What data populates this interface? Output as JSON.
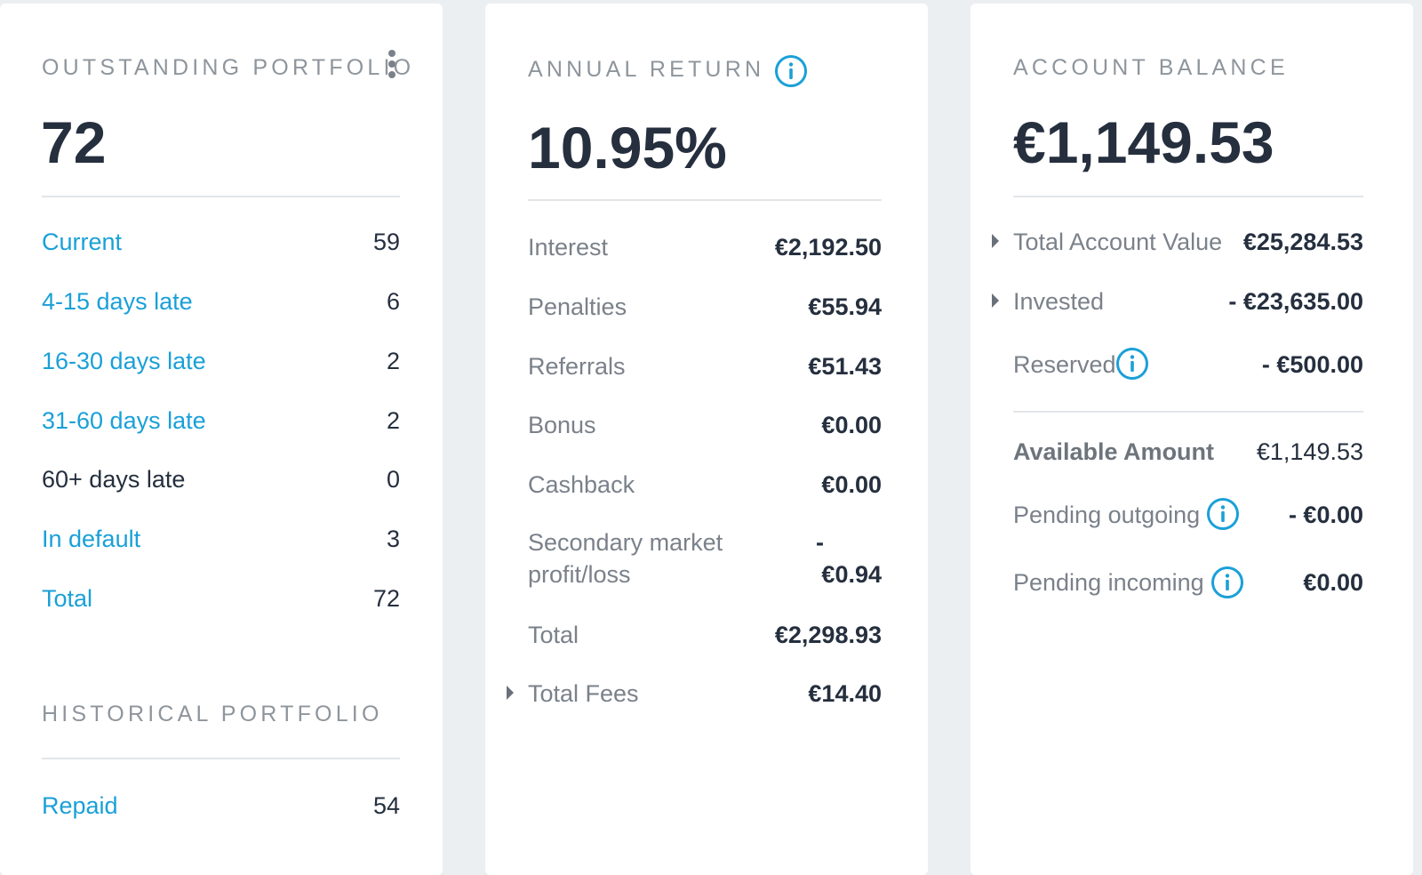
{
  "portfolio": {
    "title": "OUTSTANDING PORTFOLIO",
    "total": "72",
    "rows": [
      {
        "label": "Current",
        "value": "59"
      },
      {
        "label": "4-15 days late",
        "value": "6"
      },
      {
        "label": "16-30 days late",
        "value": "2"
      },
      {
        "label": "31-60 days late",
        "value": "2"
      },
      {
        "label": "60+ days late",
        "value": "0"
      },
      {
        "label": "In default",
        "value": "3"
      },
      {
        "label": "Total",
        "value": "72"
      }
    ],
    "historical_title": "HISTORICAL PORTFOLIO",
    "historical_rows": [
      {
        "label": "Repaid",
        "value": "54"
      }
    ]
  },
  "annual_return": {
    "title": "ANNUAL RETURN",
    "value": "10.95%",
    "rows": [
      {
        "label": "Interest",
        "value": "€2,192.50"
      },
      {
        "label": "Penalties",
        "value": "€55.94"
      },
      {
        "label": "Referrals",
        "value": "€51.43"
      },
      {
        "label": "Bonus",
        "value": "€0.00"
      },
      {
        "label": "Cashback",
        "value": "€0.00"
      }
    ],
    "secondary_market": {
      "label_line1": "Secondary market",
      "label_line2": "profit/loss",
      "value_line1": "-",
      "value_line2": "€0.94"
    },
    "total": {
      "label": "Total",
      "value": "€2,298.93"
    },
    "fees": {
      "label": "Total Fees",
      "value": "€14.40"
    }
  },
  "account_balance": {
    "title": "ACCOUNT BALANCE",
    "value": "€1,149.53",
    "total_account_value": {
      "label": "Total Account Value",
      "value": "€25,284.53"
    },
    "invested": {
      "label": "Invested",
      "value": "- €23,635.00"
    },
    "reserved": {
      "label": "Reserved",
      "value": "- €500.00"
    },
    "available": {
      "label": "Available Amount",
      "value": "€1,149.53"
    },
    "pending_outgoing": {
      "label": "Pending outgoing",
      "value": "- €0.00"
    },
    "pending_incoming": {
      "label": "Pending incoming",
      "value": "€0.00"
    }
  },
  "colors": {
    "link": "#1aa0d8",
    "text_dark": "#252f3e",
    "text_grey": "#7a818a",
    "background": "#eceff2",
    "card": "#ffffff"
  },
  "icons": [
    "kebab-menu-icon",
    "info-icon",
    "caret-right-icon"
  ]
}
